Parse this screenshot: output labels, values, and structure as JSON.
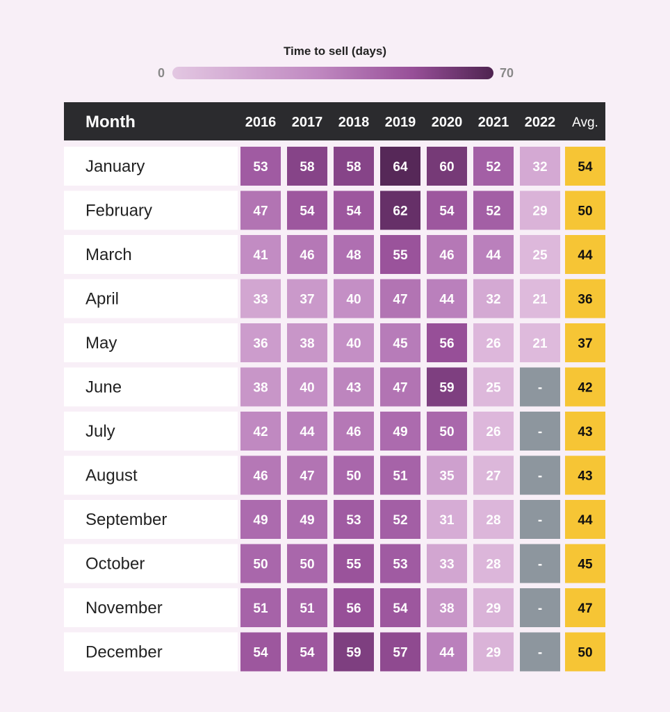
{
  "legend": {
    "title": "Time to sell (days)",
    "min_label": "0",
    "max_label": "70"
  },
  "colors": {
    "header_bg": "#2b2b2e",
    "avg_cell": "#f6c535",
    "missing_cell": "#8d969e",
    "row_label_bg": "#ffffff",
    "scale_low": "#e3c7e2",
    "scale_high": "#4e2350"
  },
  "chart_data": {
    "type": "heatmap",
    "title": "",
    "row_header": "Month",
    "columns": [
      "2016",
      "2017",
      "2018",
      "2019",
      "2020",
      "2021",
      "2022"
    ],
    "avg_header": "Avg.",
    "rows": [
      "January",
      "February",
      "March",
      "April",
      "May",
      "June",
      "July",
      "August",
      "September",
      "October",
      "November",
      "December"
    ],
    "values": [
      [
        53,
        58,
        58,
        64,
        60,
        52,
        32
      ],
      [
        47,
        54,
        54,
        62,
        54,
        52,
        29
      ],
      [
        41,
        46,
        48,
        55,
        46,
        44,
        25
      ],
      [
        33,
        37,
        40,
        47,
        44,
        32,
        21
      ],
      [
        36,
        38,
        40,
        45,
        56,
        26,
        21
      ],
      [
        38,
        40,
        43,
        47,
        59,
        25,
        null
      ],
      [
        42,
        44,
        46,
        49,
        50,
        26,
        null
      ],
      [
        46,
        47,
        50,
        51,
        35,
        27,
        null
      ],
      [
        49,
        49,
        53,
        52,
        31,
        28,
        null
      ],
      [
        50,
        50,
        55,
        53,
        33,
        28,
        null
      ],
      [
        51,
        51,
        56,
        54,
        38,
        29,
        null
      ],
      [
        54,
        54,
        59,
        57,
        44,
        29,
        null
      ]
    ],
    "missing_label": "-",
    "averages": [
      54,
      50,
      44,
      36,
      37,
      42,
      43,
      43,
      44,
      45,
      47,
      50
    ],
    "color_scale": {
      "min": 0,
      "max": 70,
      "label": "Time to sell (days)"
    }
  }
}
